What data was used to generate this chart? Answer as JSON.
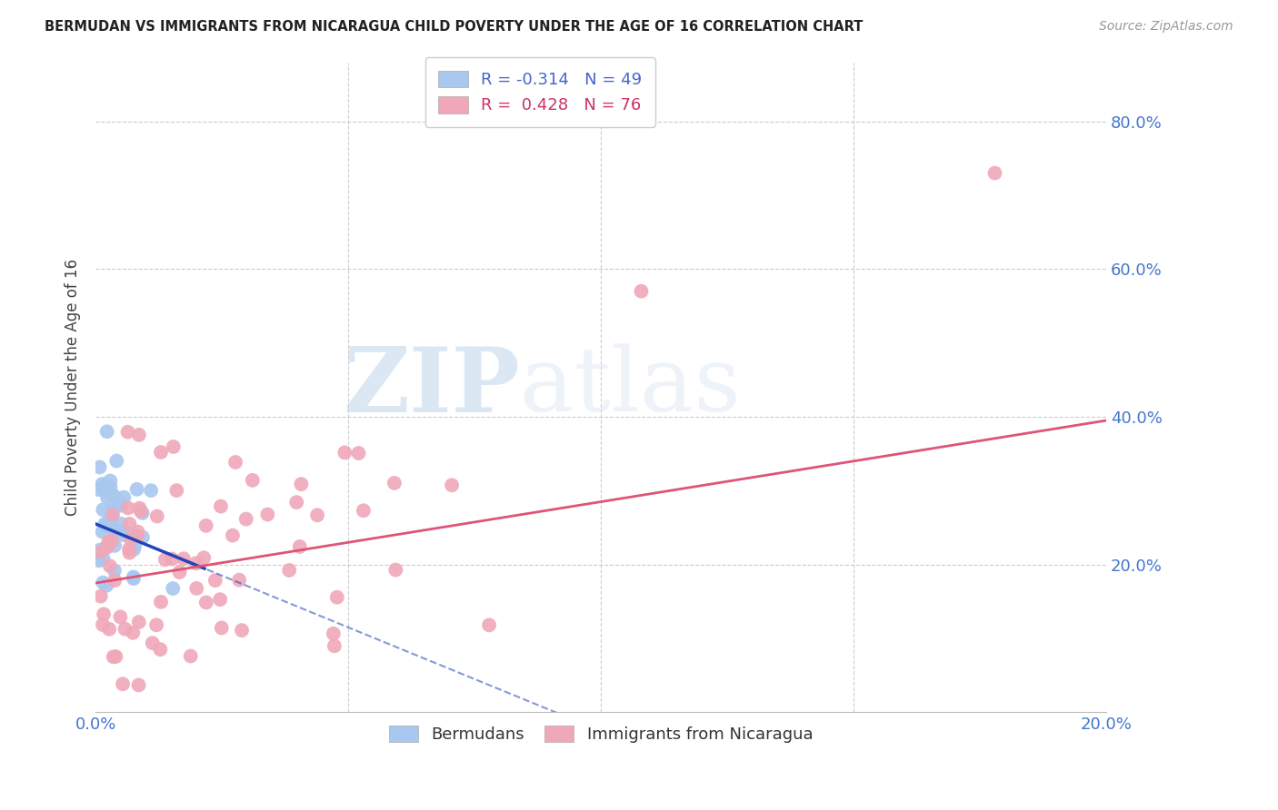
{
  "title": "BERMUDAN VS IMMIGRANTS FROM NICARAGUA CHILD POVERTY UNDER THE AGE OF 16 CORRELATION CHART",
  "source": "Source: ZipAtlas.com",
  "ylabel": "Child Poverty Under the Age of 16",
  "xlim": [
    0.0,
    0.2
  ],
  "ylim": [
    0.0,
    0.88
  ],
  "blue_color": "#a8c8f0",
  "pink_color": "#f0a8b8",
  "blue_line_color": "#2244bb",
  "pink_line_color": "#dd5577",
  "legend_r_blue": "-0.314",
  "legend_n_blue": "49",
  "legend_r_pink": "0.428",
  "legend_n_pink": "76",
  "watermark_zip": "ZIP",
  "watermark_atlas": "atlas",
  "grid_color": "#cccccc",
  "blue_scatter_seed": 42,
  "pink_scatter_seed": 99,
  "blue_line_intercept": 0.255,
  "blue_line_slope": -2.8,
  "pink_line_intercept": 0.175,
  "pink_line_slope": 1.1
}
